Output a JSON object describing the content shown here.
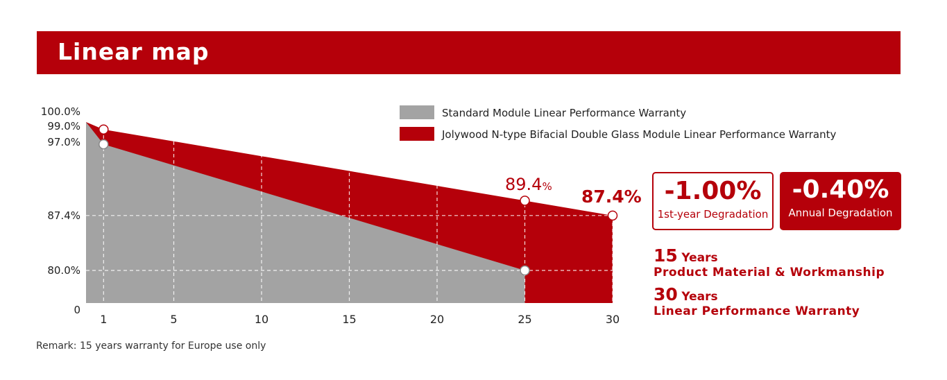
{
  "header": {
    "title": "Linear map"
  },
  "chart_data": {
    "type": "area",
    "x_ticks": [
      1,
      5,
      10,
      15,
      20,
      25,
      30
    ],
    "y_ticks": [
      "100.0%",
      "99.0%",
      "97.0%",
      "87.4%",
      "80.0%",
      "0"
    ],
    "series": [
      {
        "name": "Jolywood N-type Bifacial Double Glass Module Linear Performance Warranty",
        "color": "#b5000a",
        "points": [
          [
            0,
            100.0
          ],
          [
            1,
            99.0
          ],
          [
            25,
            89.4
          ],
          [
            30,
            87.4
          ]
        ]
      },
      {
        "name": "Standard Module Linear Performance Warranty",
        "color": "#a3a3a3",
        "points": [
          [
            0,
            100.0
          ],
          [
            1,
            97.0
          ],
          [
            25,
            80.0
          ]
        ]
      }
    ],
    "annotations": [
      {
        "label": "89.4",
        "unit": "%"
      },
      {
        "label": "87.4%"
      }
    ],
    "grid": "dashed"
  },
  "badges": {
    "first_year": {
      "value": "-1.00%",
      "label": "1st-year Degradation"
    },
    "annual": {
      "value": "-0.40%",
      "label": "Annual Degradation"
    }
  },
  "warranties": [
    {
      "number": "15",
      "unit": "Years",
      "text": "Product Material & Workmanship"
    },
    {
      "number": "30",
      "unit": "Years",
      "text": "Linear Performance Warranty"
    }
  ],
  "remark": "Remark: 15 years warranty for Europe use only"
}
